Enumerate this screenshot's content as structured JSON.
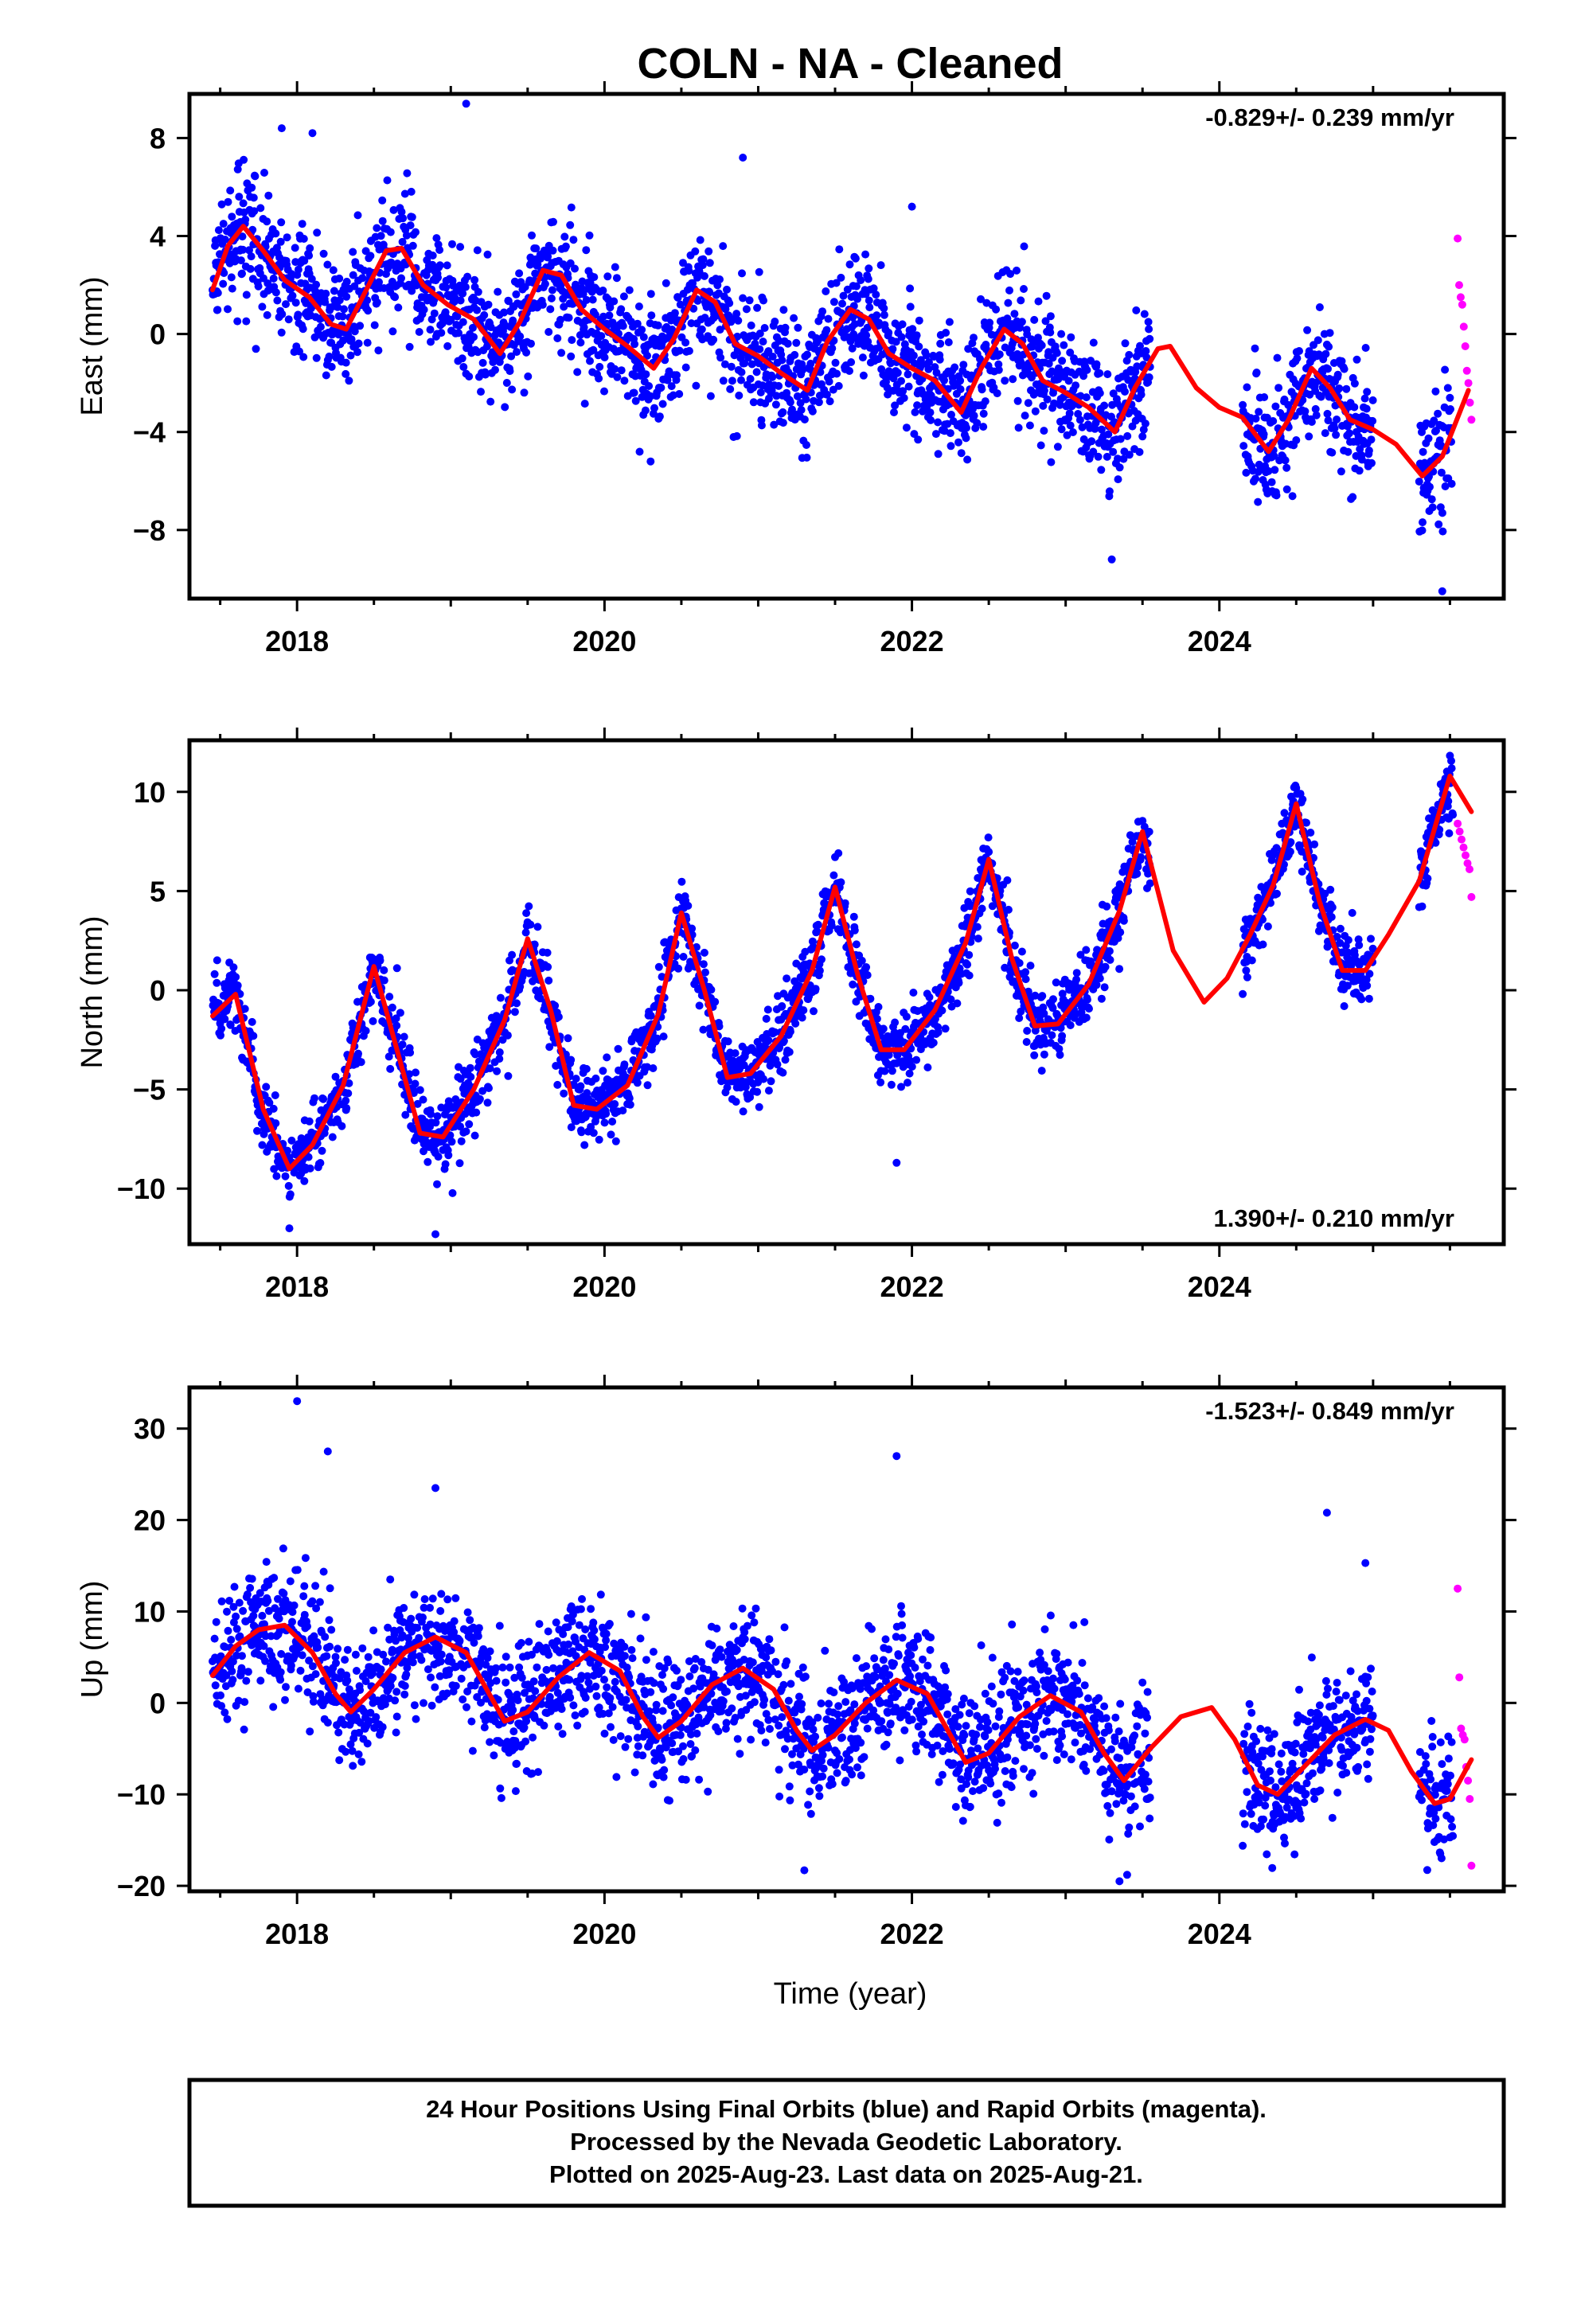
{
  "title": "COLN  - NA - Cleaned",
  "xlabel": "Time (year)",
  "footer": {
    "line1": "24 Hour Positions Using Final Orbits (blue) and Rapid Orbits (magenta).",
    "line2": "Processed by the Nevada Geodetic Laboratory.",
    "line3": "Plotted on 2025-Aug-23. Last data on 2025-Aug-21."
  },
  "colors": {
    "final": "#0000ff",
    "rapid": "#ff00ff",
    "model": "#ff0000",
    "frame": "#000000"
  },
  "chart_data": [
    {
      "type": "scatter",
      "title": "COLN  - NA - Cleaned",
      "xlabel": "",
      "ylabel": "East (mm)",
      "xlim": [
        2017.3,
        2025.85
      ],
      "ylim": [
        -10.8,
        9.8
      ],
      "xticks": [
        2018,
        2020,
        2022,
        2024
      ],
      "yticks": [
        -8,
        -4,
        0,
        4,
        8
      ],
      "ytick_labels": [
        "−8",
        "−4",
        "0",
        "4",
        "8"
      ],
      "rate_text": "-0.829+/- 0.239 mm/yr",
      "rate_position": "top-right",
      "grid": false,
      "final_orbits": {
        "x_range": [
          2017.45,
          2025.52
        ],
        "gaps": [
          [
            2023.55,
            2024.15
          ],
          [
            2025.0,
            2025.3
          ]
        ],
        "scatter": 1.25,
        "outliers": [
          [
            2017.9,
            8.4
          ],
          [
            2018.1,
            8.2
          ],
          [
            2019.1,
            9.4
          ],
          [
            2020.9,
            7.2
          ],
          [
            2022.0,
            5.2
          ],
          [
            2020.3,
            -5.2
          ],
          [
            2023.3,
            -9.2
          ],
          [
            2025.45,
            -10.5
          ]
        ]
      },
      "rapid_orbits": {
        "x_range": [
          2025.55,
          2025.64
        ],
        "values": [
          3.9,
          2.0,
          1.5,
          1.2,
          0.3,
          -0.5,
          -1.5,
          -2.0,
          -2.8,
          -3.5
        ]
      },
      "model_line": {
        "x": [
          2017.45,
          2017.55,
          2017.65,
          2017.78,
          2017.92,
          2018.08,
          2018.22,
          2018.32,
          2018.45,
          2018.58,
          2018.68,
          2018.82,
          2018.98,
          2019.15,
          2019.32,
          2019.45,
          2019.6,
          2019.72,
          2019.85,
          2020.0,
          2020.15,
          2020.32,
          2020.45,
          2020.6,
          2020.72,
          2020.85,
          2021.0,
          2021.15,
          2021.32,
          2021.45,
          2021.6,
          2021.72,
          2021.85,
          2022.0,
          2022.15,
          2022.32,
          2022.45,
          2022.6,
          2022.72,
          2022.85,
          2023.0,
          2023.15,
          2023.32,
          2023.45,
          2023.6,
          2023.68,
          2023.85,
          2024.0,
          2024.15,
          2024.32,
          2024.45,
          2024.6,
          2024.72,
          2024.85,
          2025.0,
          2025.15,
          2025.32,
          2025.45,
          2025.62
        ],
        "y": [
          1.8,
          3.6,
          4.4,
          3.4,
          2.2,
          1.5,
          0.4,
          0.2,
          1.8,
          3.4,
          3.5,
          2.0,
          1.2,
          0.6,
          -0.8,
          0.5,
          2.6,
          2.4,
          1.0,
          0.2,
          -0.5,
          -1.4,
          -0.2,
          1.8,
          1.3,
          -0.4,
          -0.9,
          -1.6,
          -2.3,
          -0.3,
          1.0,
          0.6,
          -0.8,
          -1.4,
          -1.9,
          -3.2,
          -1.4,
          0.2,
          -0.4,
          -1.9,
          -2.4,
          -3.0,
          -4.0,
          -2.2,
          -0.6,
          -0.5,
          -2.2,
          -3.0,
          -3.4,
          -4.8,
          -3.5,
          -1.4,
          -2.2,
          -3.5,
          -3.9,
          -4.5,
          -5.8,
          -5.0,
          -2.3
        ]
      }
    },
    {
      "type": "scatter",
      "title": "",
      "xlabel": "",
      "ylabel": "North (mm)",
      "xlim": [
        2017.3,
        2025.85
      ],
      "ylim": [
        -12.8,
        12.6
      ],
      "xticks": [
        2018,
        2020,
        2022,
        2024
      ],
      "yticks": [
        -10,
        -5,
        0,
        5,
        10
      ],
      "ytick_labels": [
        "−10",
        "−5",
        "0",
        "5",
        "10"
      ],
      "rate_text": "1.390+/- 0.210 mm/yr",
      "rate_position": "bottom-right",
      "grid": false,
      "final_orbits": {
        "x_range": [
          2017.45,
          2025.52
        ],
        "gaps": [
          [
            2023.55,
            2024.15
          ],
          [
            2025.0,
            2025.3
          ]
        ],
        "scatter": 0.9,
        "outliers": [
          [
            2017.95,
            -12.0
          ],
          [
            2018.9,
            -12.3
          ],
          [
            2021.9,
            -8.7
          ]
        ]
      },
      "rapid_orbits": {
        "x_range": [
          2025.55,
          2025.64
        ],
        "values": [
          8.4,
          8.0,
          7.6,
          7.2,
          6.8,
          6.4,
          6.1,
          4.7
        ]
      },
      "model_line": {
        "x": [
          2017.45,
          2017.6,
          2017.78,
          2017.95,
          2018.1,
          2018.3,
          2018.5,
          2018.65,
          2018.8,
          2018.95,
          2019.15,
          2019.35,
          2019.5,
          2019.65,
          2019.8,
          2019.95,
          2020.15,
          2020.35,
          2020.5,
          2020.65,
          2020.8,
          2020.95,
          2021.15,
          2021.35,
          2021.5,
          2021.65,
          2021.8,
          2021.95,
          2022.15,
          2022.35,
          2022.5,
          2022.65,
          2022.8,
          2022.95,
          2023.15,
          2023.35,
          2023.5,
          2023.7,
          2023.9,
          2024.05,
          2024.2,
          2024.35,
          2024.5,
          2024.65,
          2024.8,
          2024.95,
          2025.1,
          2025.3,
          2025.5,
          2025.64
        ],
        "y": [
          -1.3,
          -0.2,
          -6.0,
          -9.0,
          -7.8,
          -4.8,
          1.2,
          -3.0,
          -7.2,
          -7.4,
          -5.0,
          -1.5,
          2.6,
          -1.0,
          -5.8,
          -6.0,
          -4.8,
          -1.2,
          3.9,
          0.0,
          -4.4,
          -4.2,
          -2.3,
          1.0,
          5.2,
          0.7,
          -3.0,
          -3.0,
          -1.0,
          2.4,
          6.6,
          1.6,
          -1.8,
          -1.7,
          0.3,
          4.0,
          8.0,
          2.0,
          -0.6,
          0.6,
          2.8,
          5.3,
          9.4,
          4.5,
          1.0,
          1.0,
          2.8,
          5.5,
          10.8,
          9.0
        ]
      }
    },
    {
      "type": "scatter",
      "title": "",
      "xlabel": "Time (year)",
      "ylabel": "Up (mm)",
      "xlim": [
        2017.3,
        2025.85
      ],
      "ylim": [
        -20.6,
        34.5
      ],
      "xticks": [
        2018,
        2020,
        2022,
        2024
      ],
      "yticks": [
        -20,
        -10,
        0,
        10,
        20,
        30
      ],
      "ytick_labels": [
        "−20",
        "−10",
        "0",
        "10",
        "20",
        "30"
      ],
      "rate_text": "-1.523+/- 0.849 mm/yr",
      "rate_position": "top-right",
      "grid": false,
      "final_orbits": {
        "x_range": [
          2017.45,
          2025.52
        ],
        "gaps": [
          [
            2023.55,
            2024.15
          ],
          [
            2025.0,
            2025.3
          ]
        ],
        "scatter": 3.6,
        "outliers": [
          [
            2018.0,
            33.0
          ],
          [
            2018.2,
            27.5
          ],
          [
            2018.9,
            23.5
          ],
          [
            2021.9,
            27.0
          ],
          [
            2024.7,
            20.8
          ],
          [
            2024.95,
            15.3
          ],
          [
            2021.3,
            -18.3
          ],
          [
            2023.35,
            -19.5
          ],
          [
            2023.4,
            -18.8
          ]
        ]
      },
      "rapid_orbits": {
        "x_range": [
          2025.55,
          2025.64
        ],
        "values": [
          12.5,
          2.8,
          -2.8,
          -3.5,
          -4.0,
          -7.0,
          -8.5,
          -10.5,
          -17.8
        ]
      },
      "model_line": {
        "x": [
          2017.45,
          2017.6,
          2017.75,
          2017.92,
          2018.1,
          2018.25,
          2018.35,
          2018.5,
          2018.7,
          2018.9,
          2019.1,
          2019.25,
          2019.35,
          2019.5,
          2019.7,
          2019.9,
          2020.1,
          2020.25,
          2020.35,
          2020.5,
          2020.7,
          2020.9,
          2021.1,
          2021.25,
          2021.35,
          2021.5,
          2021.7,
          2021.9,
          2022.1,
          2022.25,
          2022.35,
          2022.5,
          2022.7,
          2022.9,
          2023.1,
          2023.25,
          2023.38,
          2023.55,
          2023.75,
          2023.95,
          2024.1,
          2024.25,
          2024.38,
          2024.55,
          2024.75,
          2024.95,
          2025.1,
          2025.25,
          2025.4,
          2025.5,
          2025.64
        ],
        "y": [
          3.0,
          6.2,
          8.0,
          8.5,
          5.5,
          1.0,
          -1.0,
          1.5,
          5.5,
          7.2,
          5.5,
          1.0,
          -2.0,
          -1.0,
          2.8,
          5.5,
          3.5,
          -1.5,
          -3.8,
          -2.0,
          2.0,
          3.8,
          1.5,
          -3.0,
          -5.2,
          -3.5,
          0.0,
          2.5,
          1.0,
          -3.5,
          -6.5,
          -5.5,
          -1.5,
          0.8,
          -1.0,
          -5.5,
          -8.5,
          -5.0,
          -1.5,
          -0.5,
          -4.0,
          -9.0,
          -10.0,
          -7.0,
          -3.5,
          -1.8,
          -3.0,
          -7.5,
          -11.0,
          -10.5,
          -6.2
        ]
      }
    }
  ]
}
